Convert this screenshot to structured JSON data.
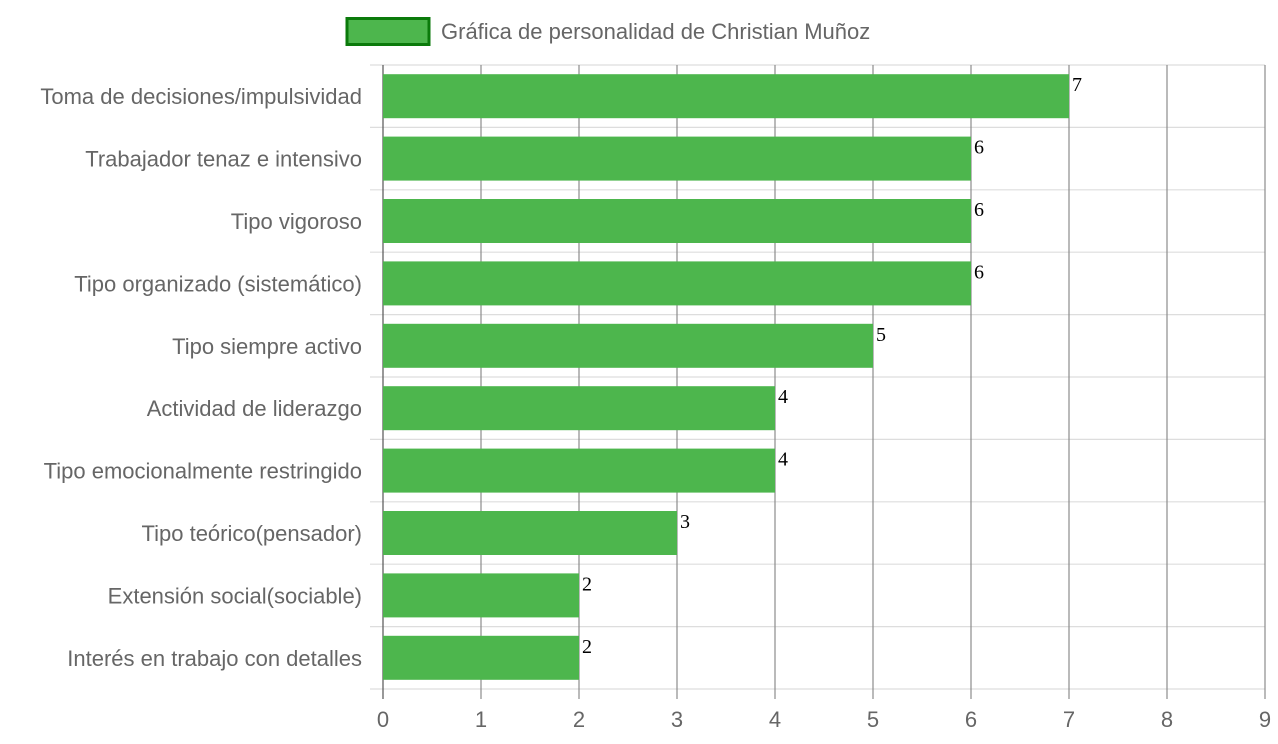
{
  "chart_data": {
    "type": "bar",
    "orientation": "horizontal",
    "categories": [
      "Toma de decisiones/impulsividad",
      "Trabajador tenaz e intensivo",
      "Tipo vigoroso",
      "Tipo organizado (sistemático)",
      "Tipo siempre activo",
      "Actividad de liderazgo",
      "Tipo emocionalmente restringido",
      "Tipo teórico(pensador)",
      "Extensión social(sociable)",
      "Interés en trabajo con detalles"
    ],
    "series": [
      {
        "name": "Gráfica de personalidad de Christian Muñoz",
        "values": [
          7,
          6,
          6,
          6,
          5,
          4,
          4,
          3,
          2,
          2
        ]
      }
    ],
    "xlim": [
      0,
      9
    ],
    "x_ticks": [
      "0",
      "1",
      "2",
      "3",
      "4",
      "5",
      "6",
      "7",
      "8",
      "9"
    ],
    "grid": true,
    "legend_position": "top",
    "data_labels": true,
    "colors": {
      "bar_fill": "#4db64d",
      "legend_border": "#0b7a0b",
      "gridline_vertical": "#8c8c8c",
      "gridline_horizontal": "#dddddd"
    }
  }
}
